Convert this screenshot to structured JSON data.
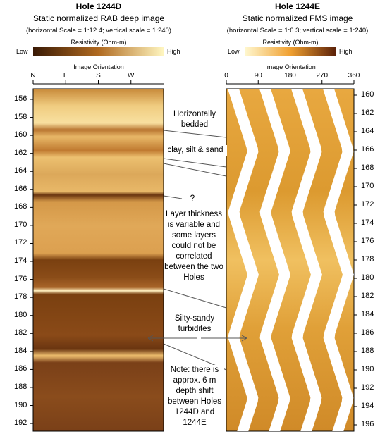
{
  "left": {
    "title": "Hole 1244D",
    "subtitle": "Static normalized RAB deep image",
    "scale": "(horizontal Scale = 1:12.4; vertical scale = 1:240)",
    "colorbar": {
      "label": "Resistivity (Ohm-m)",
      "low": "Low",
      "high": "High"
    },
    "orientation": {
      "label": "Image Orientation",
      "ticks": [
        "N",
        "E",
        "S",
        "W"
      ]
    },
    "depth_ticks": [
      "156",
      "158",
      "160",
      "162",
      "164",
      "166",
      "168",
      "170",
      "172",
      "174",
      "176",
      "178",
      "180",
      "182",
      "184",
      "186",
      "188",
      "190",
      "192"
    ]
  },
  "right": {
    "title": "Hole 1244E",
    "subtitle": "Static normalized FMS image",
    "scale": "(horizontal Scale = 1:6.3; vertical scale = 1:240)",
    "colorbar": {
      "label": "Resistivity (Ohm-m)",
      "low": "Low",
      "high": "High"
    },
    "orientation": {
      "label": "Image Orientation",
      "ticks": [
        "0",
        "90",
        "180",
        "270",
        "360"
      ]
    },
    "depth_ticks": [
      "160",
      "162",
      "164",
      "166",
      "168",
      "170",
      "172",
      "174",
      "176",
      "178",
      "180",
      "182",
      "184",
      "186",
      "188",
      "190",
      "192",
      "194",
      "196"
    ]
  },
  "annotations": {
    "bedded": "Horizontally bedded",
    "clay": "clay, silt & sand",
    "question": "?",
    "layers": "Layer thickness is variable and some layers could not be correlated between the two Holes",
    "turbidites": "Silty-sandy turbidites",
    "note": "Note: there is approx. 6 m depth shift between Holes 1244D and 1244E"
  }
}
